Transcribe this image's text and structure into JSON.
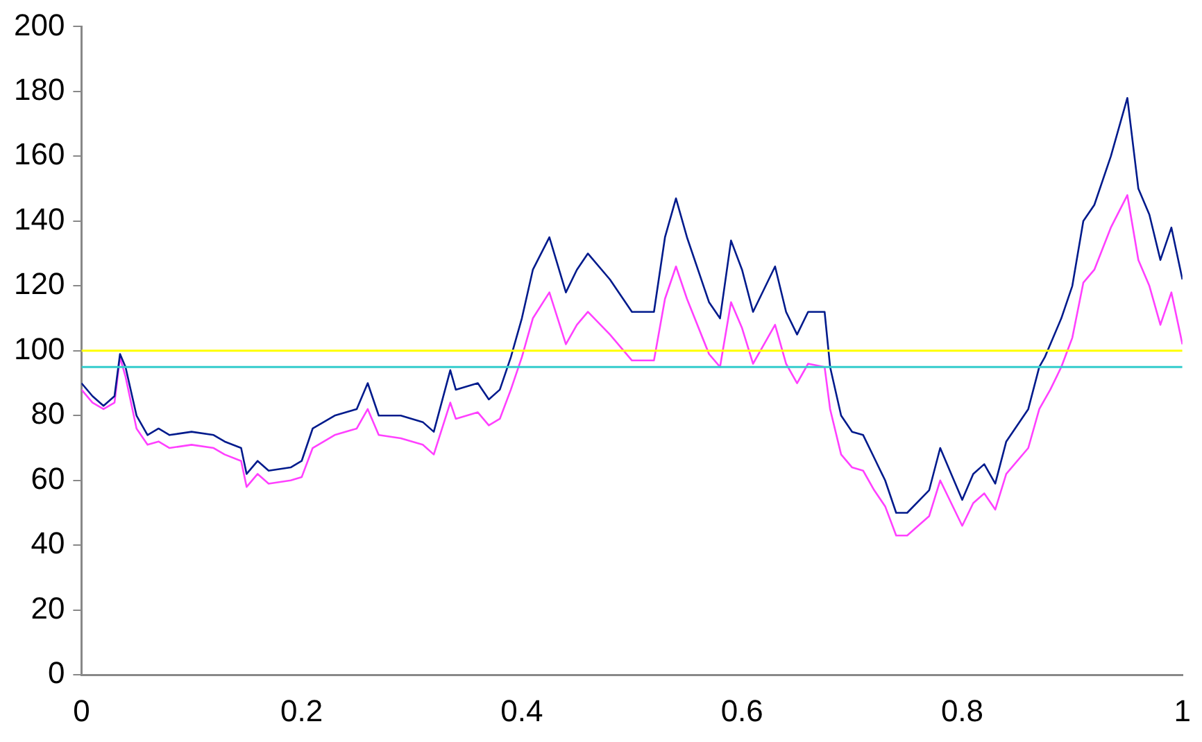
{
  "chart_data": {
    "type": "line",
    "x": [
      0,
      0.01,
      0.02,
      0.03,
      0.035,
      0.04,
      0.05,
      0.06,
      0.07,
      0.08,
      0.1,
      0.12,
      0.13,
      0.145,
      0.15,
      0.16,
      0.17,
      0.19,
      0.2,
      0.21,
      0.23,
      0.25,
      0.26,
      0.27,
      0.29,
      0.31,
      0.32,
      0.335,
      0.34,
      0.36,
      0.37,
      0.38,
      0.39,
      0.4,
      0.41,
      0.425,
      0.44,
      0.45,
      0.46,
      0.48,
      0.5,
      0.52,
      0.53,
      0.54,
      0.55,
      0.57,
      0.58,
      0.59,
      0.6,
      0.61,
      0.63,
      0.64,
      0.65,
      0.66,
      0.675,
      0.68,
      0.69,
      0.7,
      0.71,
      0.72,
      0.73,
      0.74,
      0.75,
      0.77,
      0.78,
      0.79,
      0.8,
      0.81,
      0.82,
      0.83,
      0.84,
      0.86,
      0.87,
      0.875,
      0.88,
      0.89,
      0.9,
      0.91,
      0.92,
      0.935,
      0.95,
      0.96,
      0.97,
      0.98,
      0.99,
      1
    ],
    "series": [
      {
        "color": "#001a8c",
        "values": [
          90,
          86,
          83,
          86,
          99,
          95,
          80,
          74,
          76,
          74,
          75,
          74,
          72,
          70,
          62,
          66,
          63,
          64,
          66,
          76,
          80,
          82,
          90,
          80,
          80,
          78,
          75,
          94,
          88,
          90,
          85,
          88,
          98,
          110,
          125,
          135,
          118,
          125,
          130,
          122,
          112,
          112,
          135,
          147,
          135,
          115,
          110,
          134,
          125,
          112,
          126,
          112,
          105,
          112,
          112,
          95,
          80,
          75,
          74,
          67,
          60,
          50,
          50,
          57,
          70,
          62,
          54,
          62,
          65,
          59,
          72,
          82,
          95,
          98,
          102,
          110,
          120,
          140,
          145,
          160,
          178,
          150,
          142,
          128,
          138,
          122
        ]
      },
      {
        "color": "#ff40ff",
        "values": [
          88,
          84,
          82,
          84,
          98,
          92,
          76,
          71,
          72,
          70,
          71,
          70,
          68,
          66,
          58,
          62,
          59,
          60,
          61,
          70,
          74,
          76,
          82,
          74,
          73,
          71,
          68,
          84,
          79,
          81,
          77,
          79,
          88,
          98,
          110,
          118,
          102,
          108,
          112,
          105,
          97,
          97,
          116,
          126,
          116,
          99,
          95,
          115,
          107,
          96,
          108,
          96,
          90,
          96,
          95,
          82,
          68,
          64,
          63,
          57,
          52,
          43,
          43,
          49,
          60,
          53,
          46,
          53,
          56,
          51,
          62,
          70,
          82,
          85,
          88,
          95,
          104,
          121,
          125,
          138,
          148,
          128,
          120,
          108,
          118,
          102
        ]
      }
    ],
    "xlim": [
      0,
      1
    ],
    "xticks": [
      0,
      0.2,
      0.4,
      0.6,
      0.8,
      1
    ],
    "ylim": [
      0,
      200
    ],
    "yticks": [
      0,
      20,
      40,
      60,
      80,
      100,
      120,
      140,
      160,
      180,
      200
    ],
    "ref_lines": [
      {
        "axis": "y",
        "value": 100,
        "color": "#ffff00"
      },
      {
        "axis": "y",
        "value": 95,
        "color": "#33cccc"
      }
    ],
    "grid": false,
    "marker": "none",
    "line_style": "solid"
  }
}
